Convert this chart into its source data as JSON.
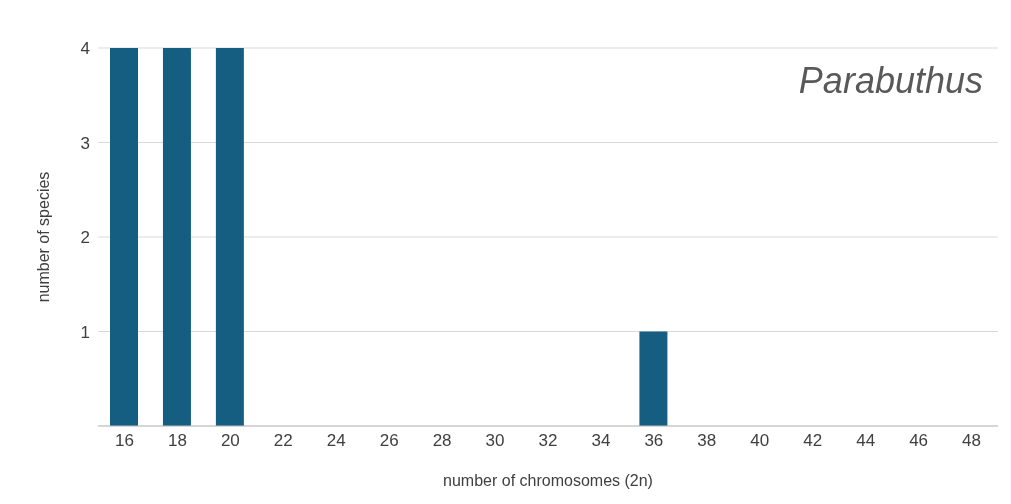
{
  "chart_data": {
    "type": "bar",
    "title": "Parabuthus",
    "xlabel": "number of chromosomes (2n)",
    "ylabel": "number of species",
    "categories": [
      "16",
      "18",
      "20",
      "22",
      "24",
      "26",
      "28",
      "30",
      "32",
      "34",
      "36",
      "38",
      "40",
      "42",
      "44",
      "46",
      "48"
    ],
    "values": [
      4,
      4,
      4,
      0,
      0,
      0,
      0,
      0,
      0,
      0,
      1,
      0,
      0,
      0,
      0,
      0,
      0
    ],
    "color": "#155e82",
    "ylim": [
      0,
      4
    ],
    "yticks": [
      1,
      2,
      3,
      4
    ],
    "grid": "y"
  }
}
